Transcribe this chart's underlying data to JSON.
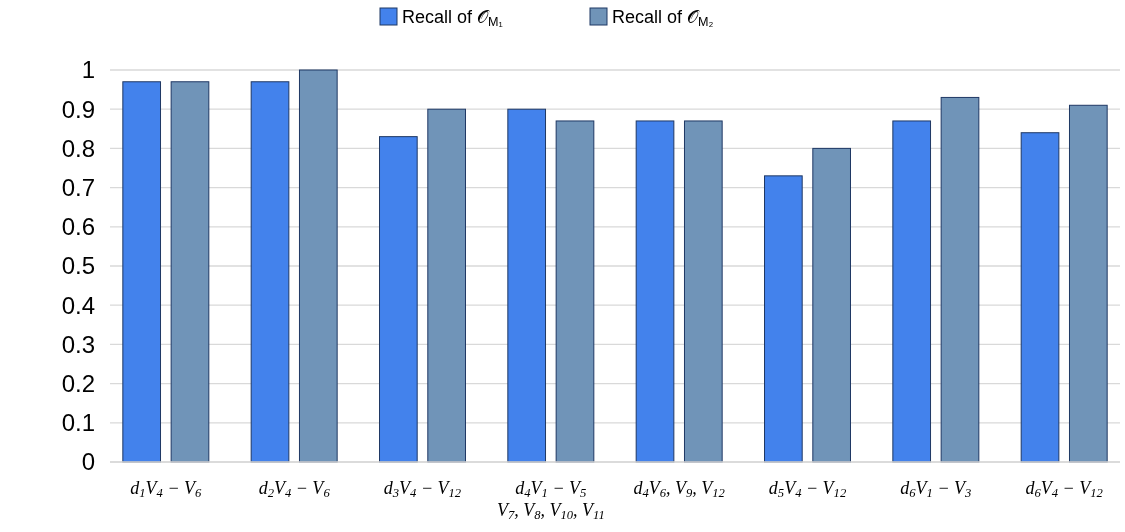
{
  "chart_data": {
    "type": "bar",
    "categories": [
      "d$_{1}$V$_{4}$ − V$_{6}$",
      "d$_{2}$V$_{4}$ − V$_{6}$",
      "d$_{3}$V$_{4}$ − V$_{12}$",
      "d$_{4}$V$_{1}$ − V$_{5}$\nV$_{7}$, V$_{8}$, V$_{10}$, V$_{11}$",
      "d$_{4}$V$_{6}$, V$_{9}$, V$_{12}$",
      "d$_{5}$V$_{4}$ − V$_{12}$",
      "d$_{6}$V$_{1}$ − V$_{3}$",
      "d$_{6}$V$_{4}$ − V$_{12}$"
    ],
    "series": [
      {
        "name": "Recall of 𝒪$_{M₁}$",
        "color": "#4382ec",
        "values": [
          0.97,
          0.97,
          0.83,
          0.9,
          0.87,
          0.73,
          0.87,
          0.84
        ]
      },
      {
        "name": "Recall of 𝒪$_{M₂}$",
        "color": "#7094b8",
        "values": [
          0.97,
          1.0,
          0.9,
          0.87,
          0.87,
          0.8,
          0.93,
          0.91
        ]
      }
    ],
    "ylim": [
      0,
      1
    ],
    "yticks": [
      0,
      0.1,
      0.2,
      0.3,
      0.4,
      0.5,
      0.6,
      0.7,
      0.8,
      0.9,
      1
    ],
    "grid": "y",
    "legend": "top"
  }
}
